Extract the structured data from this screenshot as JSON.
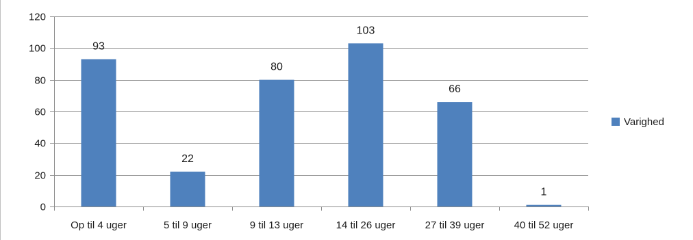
{
  "chart_data": {
    "type": "bar",
    "categories": [
      "Op til 4 uger",
      "5 til 9 uger",
      "9 til 13 uger",
      "14 til 26 uger",
      "27 til 39 uger",
      "40 til 52 uger"
    ],
    "series": [
      {
        "name": "Varighed",
        "values": [
          93,
          22,
          80,
          103,
          66,
          1
        ],
        "color": "#4f81bd"
      }
    ],
    "yticks": [
      0,
      20,
      40,
      60,
      80,
      100,
      120
    ],
    "ylim": [
      0,
      120
    ],
    "title": "",
    "xlabel": "",
    "ylabel": "",
    "grid": true,
    "legend_position": "right"
  }
}
